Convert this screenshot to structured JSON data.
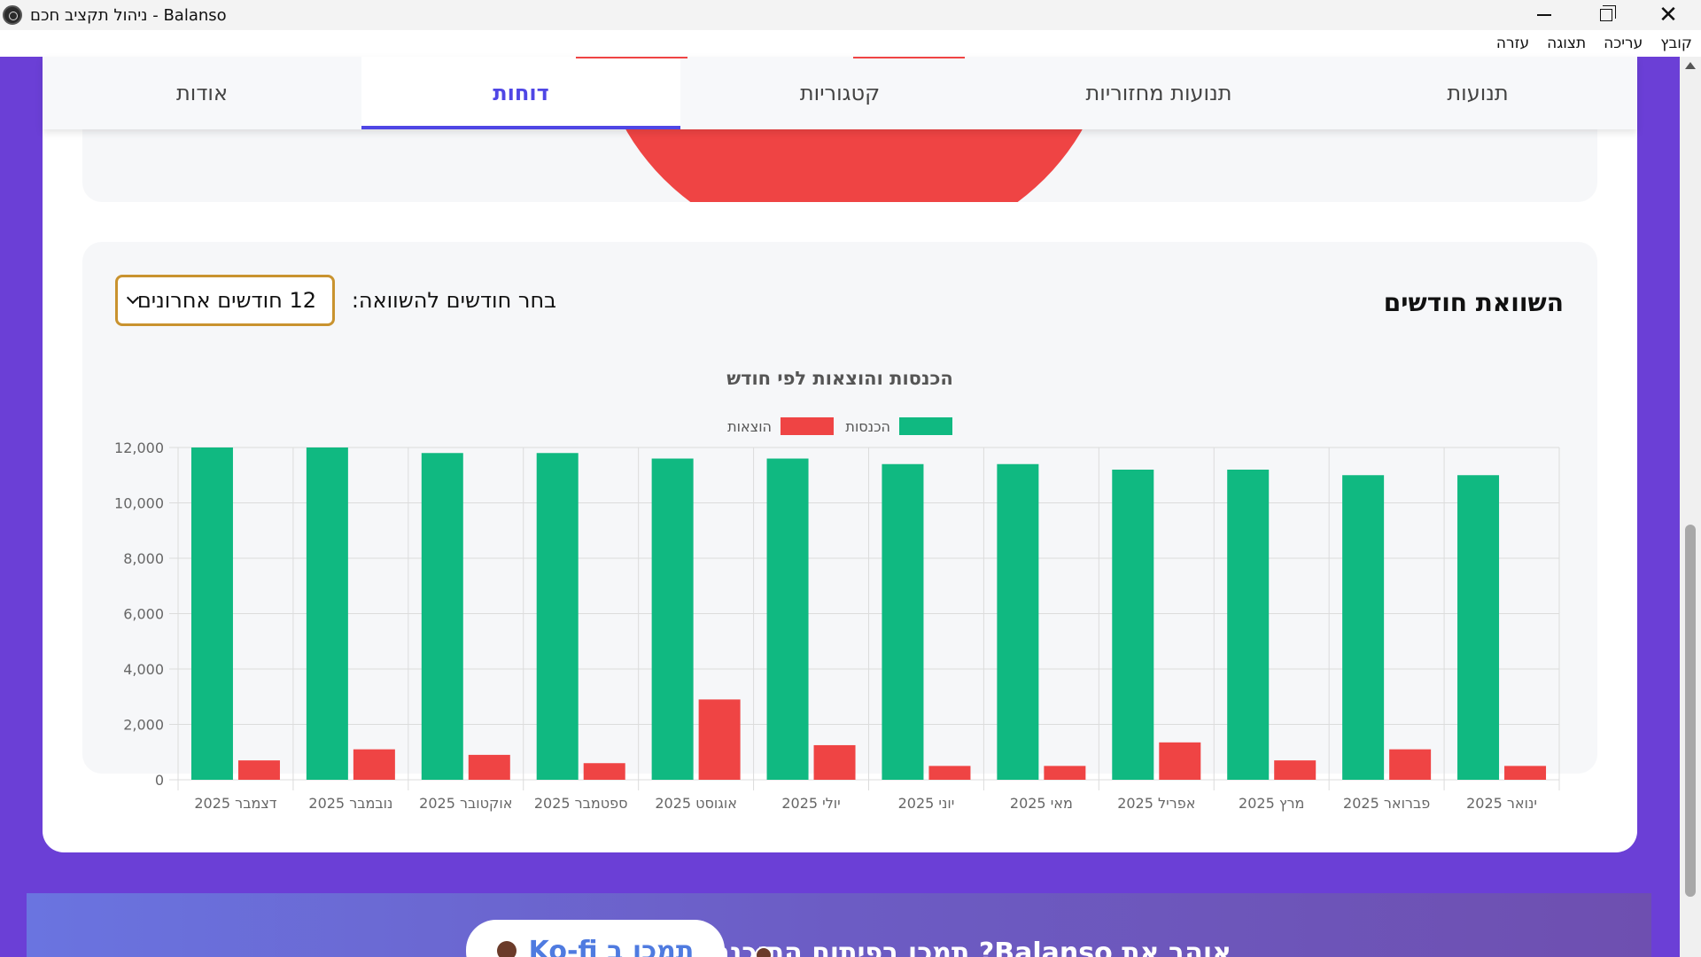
{
  "window": {
    "title": "ניהול תקציב חכם - Balanso"
  },
  "menu": {
    "items": [
      "קובץ",
      "עריכה",
      "תצוגה",
      "עזרה"
    ]
  },
  "tabs": [
    {
      "label": "תנועות",
      "active": false
    },
    {
      "label": "תנועות מחזוריות",
      "active": false
    },
    {
      "label": "קטגוריות",
      "active": false
    },
    {
      "label": "דוחות",
      "active": true
    },
    {
      "label": "אודות",
      "active": false
    }
  ],
  "comparison": {
    "title": "השוואת חודשים",
    "select_label": "בחר חודשים להשוואה:",
    "select_value": "12 חודשים אחרונים"
  },
  "colors": {
    "accent": "#4f46e5",
    "income": "#10b981",
    "expense": "#ef4444",
    "select_border": "#c9932f"
  },
  "chart_data": {
    "type": "bar",
    "title": "הכנסות והוצאות לפי חודש",
    "categories": [
      "ינואר 2025",
      "פברואר 2025",
      "מרץ 2025",
      "אפריל 2025",
      "מאי 2025",
      "יוני 2025",
      "יולי 2025",
      "אוגוסט 2025",
      "ספטמבר 2025",
      "אוקטובר 2025",
      "נובמבר 2025",
      "דצמבר 2025"
    ],
    "series": [
      {
        "name": "הכנסות",
        "color": "#10b981",
        "values": [
          11000,
          11000,
          11200,
          11200,
          11400,
          11400,
          11600,
          11600,
          11800,
          11800,
          12000,
          12000
        ]
      },
      {
        "name": "הוצאות",
        "color": "#ef4444",
        "values": [
          500,
          1100,
          700,
          1350,
          500,
          500,
          1250,
          2900,
          600,
          900,
          1100,
          700
        ]
      }
    ],
    "y_ticks": [
      "0",
      "2,000",
      "4,000",
      "6,000",
      "8,000",
      "10,000",
      "12,000"
    ],
    "ylim": [
      0,
      12000
    ],
    "grid": true,
    "legend_position": "top-center"
  },
  "banner": {
    "text": "אוהב את Balanso? תמכו בפיתוח התוכנה!",
    "button_label": "תמכו ב Ko-fi"
  }
}
